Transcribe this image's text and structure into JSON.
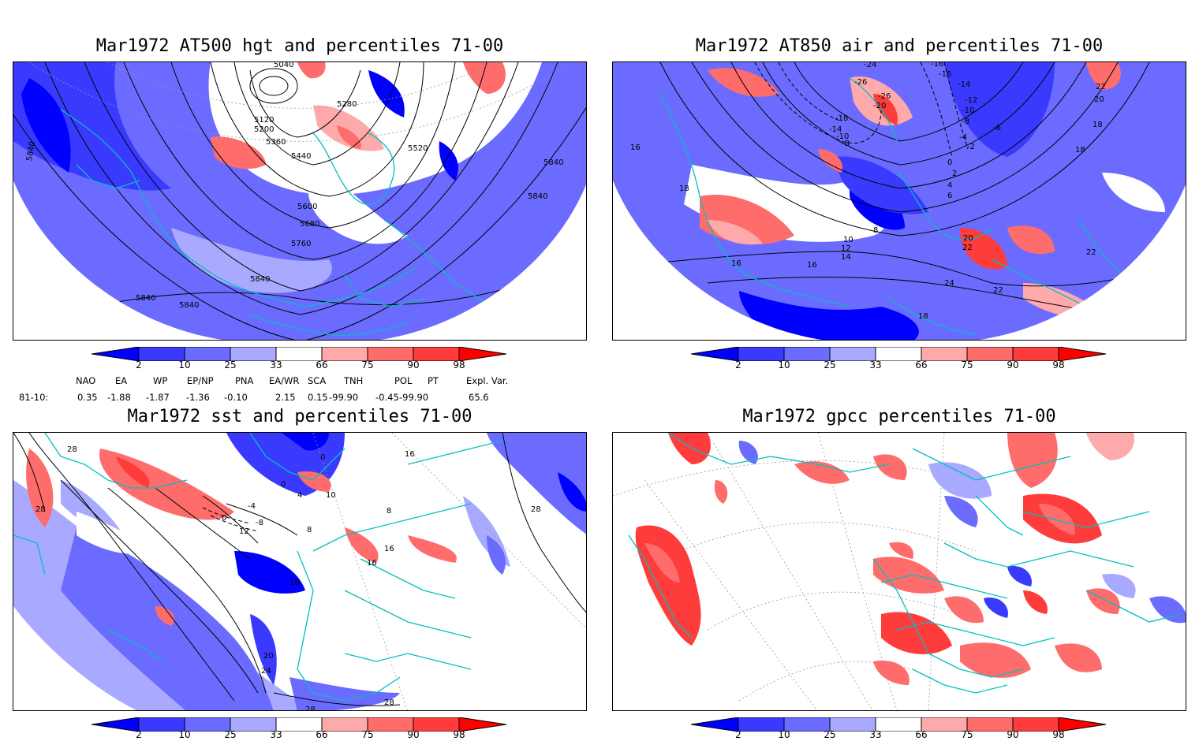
{
  "panels": [
    {
      "title": "Mar1972 AT500 hgt and percentiles 71-00",
      "contour_labels": [
        "5040",
        "5120",
        "5200",
        "5280",
        "5360",
        "5440",
        "5520",
        "5600",
        "5680",
        "5760",
        "5840",
        "5840",
        "5840",
        "5840",
        "5840",
        "5840"
      ]
    },
    {
      "title": "Mar1972 AT850 air and percentiles 71-00",
      "contour_labels": [
        "-24",
        "-26",
        "-26",
        "-20",
        "-18",
        "-14",
        "-10",
        "-8",
        "-16",
        "-16",
        "-14",
        "-12",
        "-10",
        "-8",
        "-6",
        "-4",
        "-2",
        "0",
        "2",
        "4",
        "6",
        "8",
        "10",
        "12",
        "14",
        "16",
        "16",
        "16",
        "18",
        "18",
        "18",
        "18",
        "20",
        "20",
        "22",
        "22",
        "22",
        "22",
        "24"
      ]
    },
    {
      "title": "Mar1972 sst and percentiles 71-00",
      "contour_labels": [
        "28",
        "28",
        "28",
        "28",
        "0",
        "0",
        "0",
        "-4",
        "4",
        "-8",
        "12",
        "8",
        "16",
        "16",
        "16",
        "16",
        "20",
        "24",
        "28",
        "8",
        "10"
      ]
    },
    {
      "title": "Mar1972 gpcc percentiles 71-00",
      "contour_labels": []
    }
  ],
  "colorbar": {
    "tick_labels": [
      "2",
      "10",
      "25",
      "33",
      "66",
      "75",
      "90",
      "98"
    ],
    "colors": {
      "below_2": "#0000ff",
      "2_10": "#3a3aff",
      "10_25": "#6b6bff",
      "25_33": "#a9a9ff",
      "33_66": "#ffffff",
      "66_75": "#ffaaaa",
      "75_90": "#ff6c6c",
      "90_98": "#ff3c3c",
      "above_98": "#ff0000"
    }
  },
  "indices": {
    "headers": [
      "NAO",
      "EA",
      "WP",
      "EP/NP",
      "PNA",
      "EA/WR",
      "SCA",
      "TNH",
      "POL",
      "PT",
      "Expl. Var."
    ],
    "row_label": "81-10:",
    "values": [
      "0.35",
      "-1.88",
      "-1.87",
      "-1.36",
      "-0.10",
      "2.15",
      "0.15",
      "-99.90",
      "-0.45",
      "-99.90",
      "65.6"
    ]
  },
  "map_colors": {
    "coast": "#00c0c0",
    "contour": "#000000",
    "grid": "#999999"
  }
}
